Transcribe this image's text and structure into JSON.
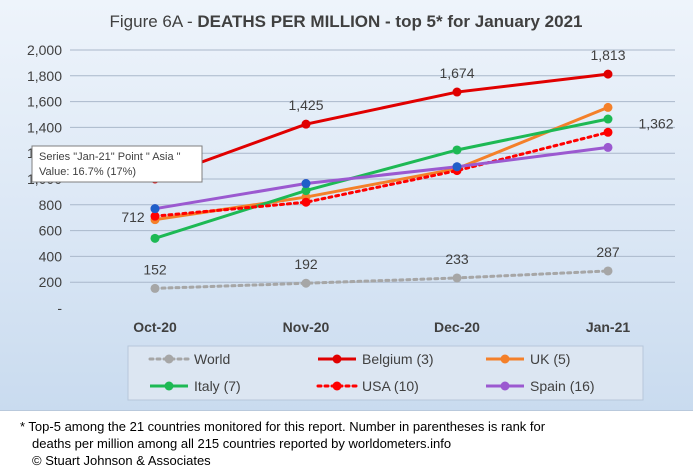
{
  "chart_data": {
    "type": "line",
    "title_prefix": "Figure 6A - ",
    "title_bold": "DEATHS PER MILLION - top 5* for January 2021",
    "categories": [
      "Oct-20",
      "Nov-20",
      "Dec-20",
      "Jan-21"
    ],
    "ylim": [
      0,
      2000
    ],
    "yticks": [
      "-",
      "200",
      "400",
      "600",
      "800",
      "1,000",
      "1,200",
      "1,400",
      "1,600",
      "1,800",
      "2,000"
    ],
    "grid": true,
    "legend_position": "bottom",
    "series": [
      {
        "name": "World",
        "color": "#a6a6a6",
        "dashed": true,
        "values": [
          152,
          192,
          233,
          287
        ],
        "labels": [
          "152",
          "192",
          "233",
          "287"
        ]
      },
      {
        "name": "Belgium (3)",
        "color": "#e00000",
        "dashed": false,
        "values": [
          1000,
          1425,
          1674,
          1813
        ],
        "labels": [
          "",
          "1,425",
          "1,674",
          "1,813"
        ]
      },
      {
        "name": "UK (5)",
        "color": "#f4802a",
        "dashed": false,
        "values": [
          685,
          860,
          1080,
          1555
        ],
        "labels": [
          "",
          "",
          "",
          ""
        ]
      },
      {
        "name": "Italy (7)",
        "color": "#1db954",
        "dashed": false,
        "values": [
          540,
          910,
          1225,
          1465
        ],
        "labels": [
          "",
          "",
          "",
          ""
        ]
      },
      {
        "name": "USA (10)",
        "color": "#ff0000",
        "dashed": true,
        "values": [
          712,
          820,
          1065,
          1362
        ],
        "labels": [
          "712",
          "",
          "",
          "1,362"
        ]
      },
      {
        "name": "Spain (16)",
        "color": "#9b59d0",
        "dashed": false,
        "values": [
          770,
          965,
          1095,
          1245
        ],
        "labels": [
          "",
          "",
          "",
          ""
        ]
      }
    ],
    "tooltip": {
      "line1": "Series \"Jan-21\" Point \" Asia \"",
      "line2": "Value: 16.7% (17%)"
    },
    "extra_points": [
      {
        "category": "Oct-20",
        "value": 770,
        "color": "#1f5fc9"
      },
      {
        "category": "Nov-20",
        "value": 965,
        "color": "#1f5fc9"
      },
      {
        "category": "Dec-20",
        "value": 1095,
        "color": "#1f5fc9"
      }
    ]
  },
  "footnote": {
    "line1": "* Top-5 among the 21 countries monitored for this report. Number in parentheses is rank for",
    "line2": "deaths per million among all 215 countries reported by worldometers.info",
    "line3": "© Stuart Johnson & Associates"
  }
}
